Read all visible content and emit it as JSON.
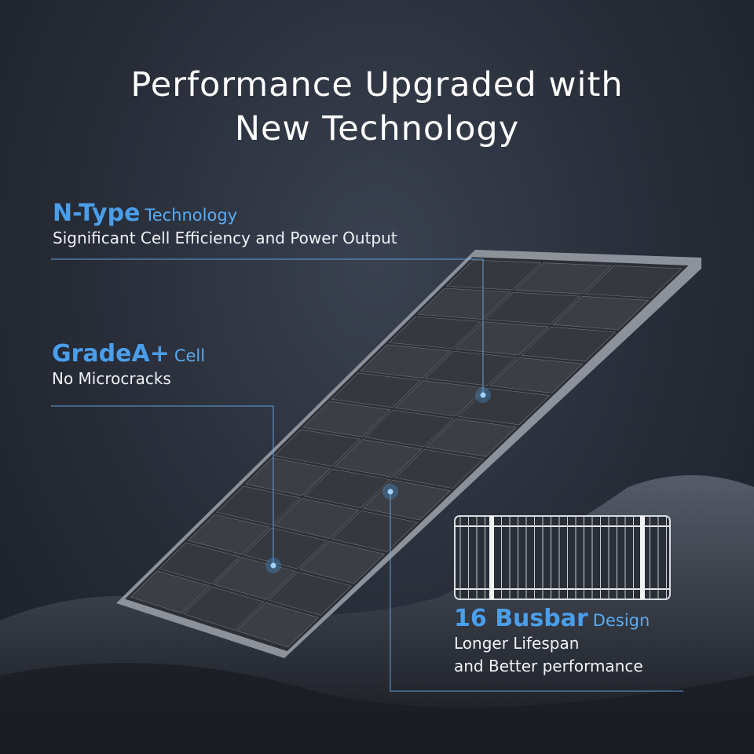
{
  "title": {
    "line1": "Performance Upgraded with",
    "line2": "New Technology"
  },
  "callouts": [
    {
      "highlight": "N-Type",
      "suffix": "Technology",
      "description": "Significant Cell Efficiency and Power Output"
    },
    {
      "highlight": "GradeA+",
      "suffix": "Cell",
      "description": "No Microcracks"
    },
    {
      "highlight": "16 Busbar",
      "suffix": "Design",
      "description_lines": [
        "Longer Lifespan",
        "and Better performance"
      ]
    }
  ],
  "colors": {
    "accent": "#4a9eea",
    "background": "#272c37",
    "text": "#ffffff"
  }
}
